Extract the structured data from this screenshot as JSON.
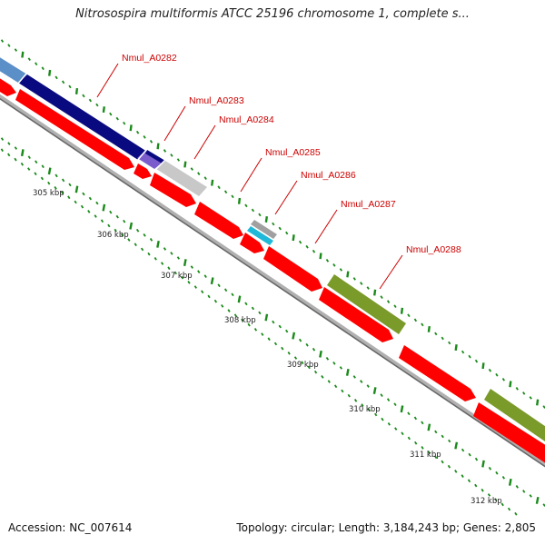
{
  "title": "Nitrosospira multiformis ATCC 25196 chromosome 1, complete s...",
  "footer": {
    "accession": "Accession: NC_007614",
    "summary": "Topology: circular; Length: 3,184,243 bp; Genes: 2,805"
  },
  "colors": {
    "forward_gene": "#ff0000",
    "backbone": "#8a8a8a",
    "tick": "#1a8a1a",
    "label": "#cc0000",
    "gene_navy": "#0a0a80",
    "gene_steelblue": "#5b8fc7",
    "gene_purple": "#7a5ccc",
    "gene_silver": "#c8c8c8",
    "gene_cyan": "#1fb8d8",
    "gene_olive": "#7a9a2a"
  },
  "gene_labels": [
    "Nmul_A0282",
    "Nmul_A0283",
    "Nmul_A0284",
    "Nmul_A0285",
    "Nmul_A0286",
    "Nmul_A0287",
    "Nmul_A0288"
  ],
  "scale_labels": [
    "305 kbp",
    "306 kbp",
    "307 kbp",
    "308 kbp",
    "309 kbp",
    "310 kbp",
    "311 kbp",
    "312 kbp"
  ]
}
